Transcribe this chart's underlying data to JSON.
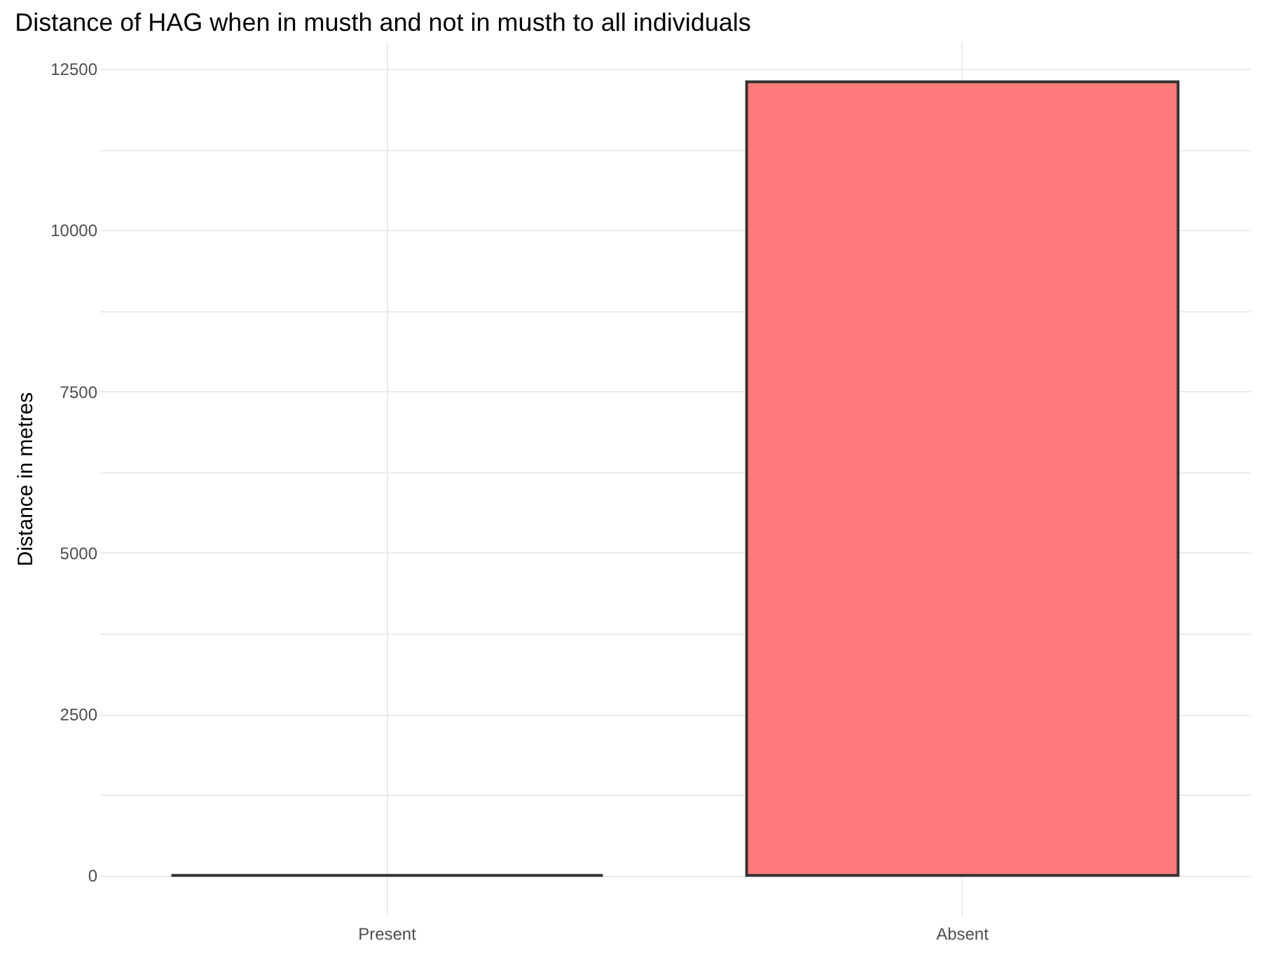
{
  "chart_data": {
    "type": "bar",
    "title": "Distance of HAG when in musth and not in musth to all individuals",
    "ylabel": "Distance in metres",
    "categories": [
      "Present",
      "Absent"
    ],
    "values": [
      0,
      12300
    ],
    "colors": [
      "#333333",
      "#ff7b7b"
    ],
    "ylim": [
      -615,
      12915
    ],
    "yticks": [
      0,
      {
        "value": 1250,
        "label": null
      },
      2500,
      {
        "value": 3750,
        "label": null
      },
      5000,
      {
        "value": 6250,
        "label": null
      },
      7500,
      {
        "value": 8750,
        "label": null
      },
      10000,
      {
        "value": 11250,
        "label": null
      },
      12500
    ],
    "grid": true
  }
}
